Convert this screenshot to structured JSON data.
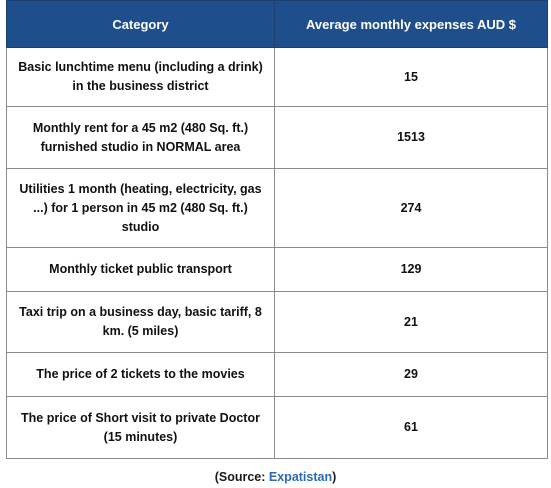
{
  "table": {
    "headers": [
      "Category",
      "Average monthly expenses AUD $"
    ],
    "rows": [
      {
        "category": "Basic lunchtime menu (including a drink) in the business district",
        "value": "15"
      },
      {
        "category": "Monthly rent for a 45 m2 (480 Sq. ft.) furnished studio in NORMAL area",
        "value": "1513"
      },
      {
        "category": "Utilities 1 month (heating, electricity, gas ...) for 1 person in 45 m2 (480 Sq. ft.) studio",
        "value": "274"
      },
      {
        "category": "Monthly ticket public transport",
        "value": "129"
      },
      {
        "category": "Taxi trip on a business day, basic tariff, 8 km. (5 miles)",
        "value": "21"
      },
      {
        "category": "The price of 2 tickets to the movies",
        "value": "29"
      },
      {
        "category": "The price of Short visit to private Doctor (15 minutes)",
        "value": "61"
      }
    ]
  },
  "source": {
    "prefix": "(Source: ",
    "name": "Expatistan",
    "suffix": ")"
  },
  "colors": {
    "header_bg": "#1f4e8c",
    "header_text": "#ffffff",
    "link": "#2a6bb5"
  }
}
